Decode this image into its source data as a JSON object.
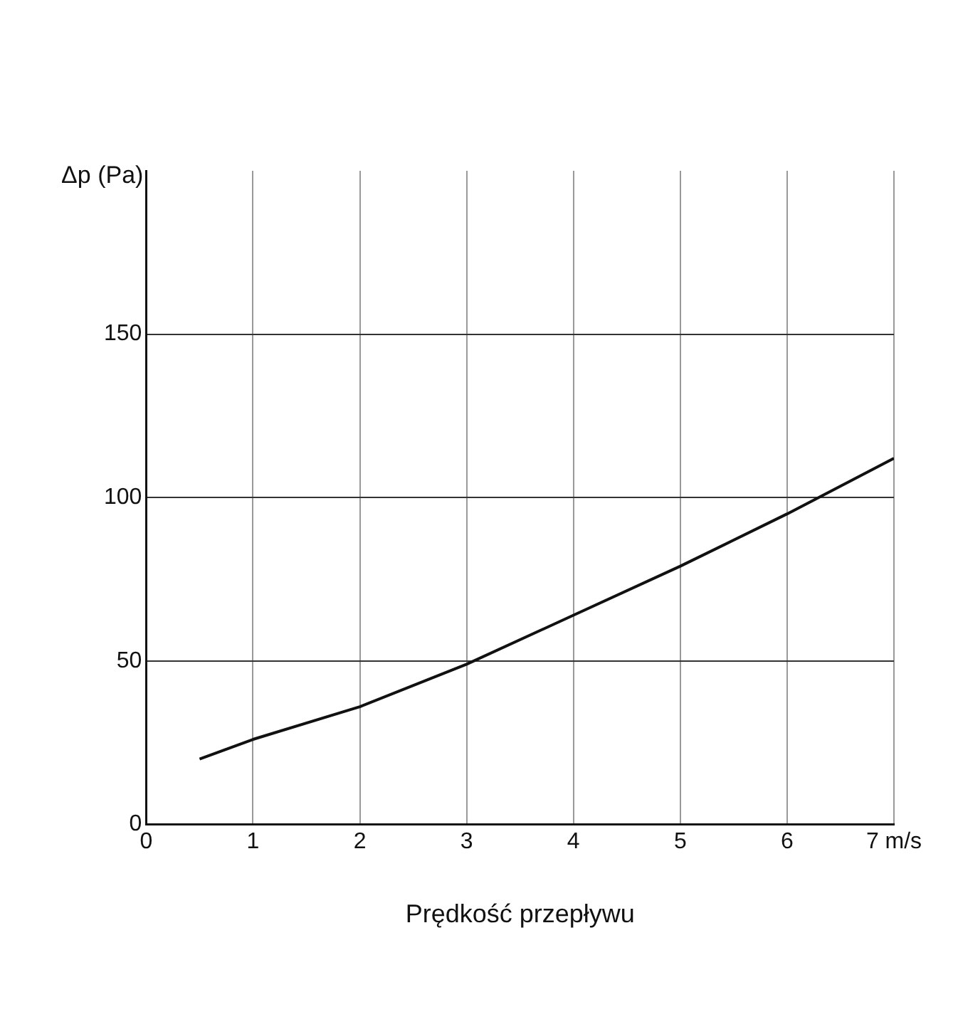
{
  "chart_data": {
    "type": "line",
    "xlabel": "Prędkość przepływu",
    "ylabel": "Δp (Pa)",
    "x": [
      0.5,
      1,
      2,
      3,
      4,
      5,
      6,
      7
    ],
    "series": [
      {
        "color": "#111111",
        "values": [
          20,
          26,
          36,
          49,
          64,
          79,
          95,
          112
        ]
      }
    ],
    "xlim": [
      0,
      7
    ],
    "xticks": [
      0,
      1,
      2,
      3,
      4,
      5,
      6,
      {
        "value": 7,
        "label": "7 m/s"
      }
    ],
    "ylim": [
      0,
      200
    ],
    "yticks": [
      0,
      50,
      100,
      150
    ],
    "grid": true,
    "legend": false,
    "marker": "none",
    "line_style": "solid"
  }
}
